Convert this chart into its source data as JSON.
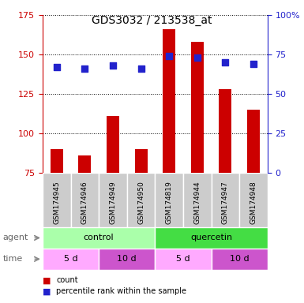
{
  "title": "GDS3032 / 213538_at",
  "samples": [
    "GSM174945",
    "GSM174946",
    "GSM174949",
    "GSM174950",
    "GSM174819",
    "GSM174944",
    "GSM174947",
    "GSM174948"
  ],
  "counts": [
    90,
    86,
    111,
    90,
    166,
    158,
    128,
    115
  ],
  "percentile_ranks": [
    67,
    66,
    68,
    66,
    74,
    73,
    70,
    69
  ],
  "ylim_left": [
    75,
    175
  ],
  "ylim_right": [
    0,
    100
  ],
  "yticks_left": [
    75,
    100,
    125,
    150,
    175
  ],
  "yticks_right": [
    0,
    25,
    50,
    75,
    100
  ],
  "agent_groups": [
    {
      "label": "control",
      "start": 0,
      "end": 4,
      "color": "#AAFFAA"
    },
    {
      "label": "quercetin",
      "start": 4,
      "end": 8,
      "color": "#44DD44"
    }
  ],
  "time_groups": [
    {
      "label": "5 d",
      "start": 0,
      "end": 2,
      "color": "#FFAAFF"
    },
    {
      "label": "10 d",
      "start": 2,
      "end": 4,
      "color": "#CC55CC"
    },
    {
      "label": "5 d",
      "start": 4,
      "end": 6,
      "color": "#FFAAFF"
    },
    {
      "label": "10 d",
      "start": 6,
      "end": 8,
      "color": "#CC55CC"
    }
  ],
  "bar_color": "#CC0000",
  "dot_color": "#2222CC",
  "grid_color": "#000000",
  "title_color": "#000000",
  "left_axis_color": "#CC0000",
  "right_axis_color": "#2222CC",
  "agent_label": "agent",
  "time_label": "time",
  "sample_bg_color": "#CCCCCC",
  "legend_items": [
    {
      "color": "#CC0000",
      "label": "count"
    },
    {
      "color": "#2222CC",
      "label": "percentile rank within the sample"
    }
  ]
}
